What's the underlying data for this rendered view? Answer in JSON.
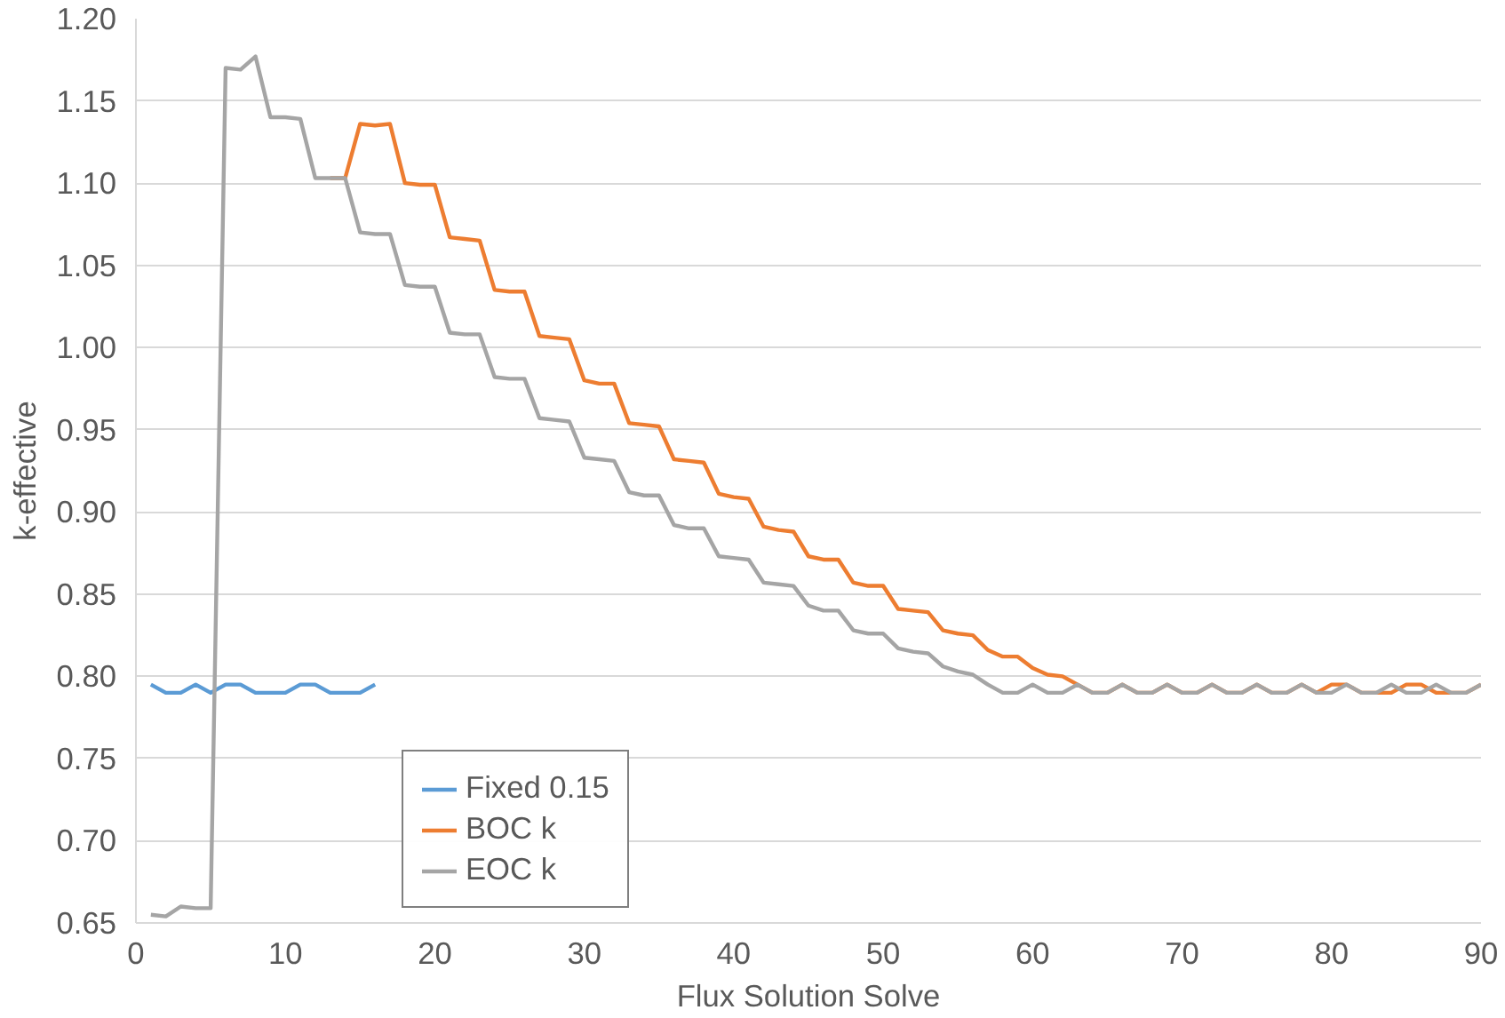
{
  "chart_data": {
    "type": "line",
    "xlabel": "Flux Solution Solve",
    "ylabel": "k-effective",
    "xlim": [
      0,
      90
    ],
    "xticks": [
      0,
      10,
      20,
      30,
      40,
      50,
      60,
      70,
      80,
      90
    ],
    "ylim": [
      0.65,
      1.2
    ],
    "yticks": [
      {
        "value": 0.65,
        "label": "0.65"
      },
      {
        "value": 0.7,
        "label": "0.70"
      },
      {
        "value": 0.75,
        "label": "0.75"
      },
      {
        "value": 0.8,
        "label": "0.80"
      },
      {
        "value": 0.85,
        "label": "0.85"
      },
      {
        "value": 0.9,
        "label": "0.90"
      },
      {
        "value": 0.95,
        "label": "0.95"
      },
      {
        "value": 1.0,
        "label": "1.00"
      },
      {
        "value": 1.05,
        "label": "1.05"
      },
      {
        "value": 1.1,
        "label": "1.10"
      },
      {
        "value": 1.15,
        "label": "1.15"
      },
      {
        "value": 1.2,
        "label": "1.20"
      }
    ],
    "grid": "y",
    "legend": "bottom left",
    "line_style": "solid",
    "series": [
      {
        "name": "Fixed 0.15",
        "color": "#5b9bd5",
        "x": [
          1,
          2,
          3,
          4,
          5,
          6,
          7,
          8,
          9,
          10,
          11,
          12,
          13,
          14,
          15,
          16
        ],
        "values": [
          0.795,
          0.79,
          0.79,
          0.795,
          0.79,
          0.795,
          0.795,
          0.79,
          0.79,
          0.79,
          0.795,
          0.795,
          0.79,
          0.79,
          0.79,
          0.795
        ]
      },
      {
        "name": "BOC k",
        "color": "#ed7d31",
        "x": [
          13,
          14,
          15,
          16,
          17,
          18,
          19,
          20,
          21,
          22,
          23,
          24,
          25,
          26,
          27,
          28,
          29,
          30,
          31,
          32,
          33,
          34,
          35,
          36,
          37,
          38,
          39,
          40,
          41,
          42,
          43,
          44,
          45,
          46,
          47,
          48,
          49,
          50,
          51,
          52,
          53,
          54,
          55,
          56,
          57,
          58,
          59,
          60,
          61,
          62,
          63,
          64,
          65,
          66,
          67,
          68,
          69,
          70,
          71,
          72,
          73,
          74,
          75,
          76,
          77,
          78,
          79,
          80,
          81,
          82,
          83,
          84,
          85,
          86,
          87,
          88,
          89,
          90
        ],
        "values": [
          1.103,
          1.103,
          1.136,
          1.135,
          1.136,
          1.1,
          1.099,
          1.099,
          1.067,
          1.066,
          1.065,
          1.035,
          1.034,
          1.034,
          1.007,
          1.006,
          1.005,
          0.98,
          0.978,
          0.978,
          0.954,
          0.953,
          0.952,
          0.932,
          0.931,
          0.93,
          0.911,
          0.909,
          0.908,
          0.891,
          0.889,
          0.888,
          0.873,
          0.871,
          0.871,
          0.857,
          0.855,
          0.855,
          0.841,
          0.84,
          0.839,
          0.828,
          0.826,
          0.825,
          0.816,
          0.812,
          0.812,
          0.805,
          0.801,
          0.8,
          0.795,
          0.79,
          0.79,
          0.795,
          0.79,
          0.79,
          0.795,
          0.79,
          0.79,
          0.795,
          0.79,
          0.79,
          0.795,
          0.79,
          0.79,
          0.795,
          0.79,
          0.795,
          0.795,
          0.79,
          0.79,
          0.79,
          0.795,
          0.795,
          0.79,
          0.79,
          0.79,
          0.795
        ]
      },
      {
        "name": "EOC k",
        "color": "#a5a5a5",
        "x": [
          1,
          2,
          3,
          4,
          5,
          6,
          7,
          8,
          9,
          10,
          11,
          12,
          13,
          14,
          15,
          16,
          17,
          18,
          19,
          20,
          21,
          22,
          23,
          24,
          25,
          26,
          27,
          28,
          29,
          30,
          31,
          32,
          33,
          34,
          35,
          36,
          37,
          38,
          39,
          40,
          41,
          42,
          43,
          44,
          45,
          46,
          47,
          48,
          49,
          50,
          51,
          52,
          53,
          54,
          55,
          56,
          57,
          58,
          59,
          60,
          61,
          62,
          63,
          64,
          65,
          66,
          67,
          68,
          69,
          70,
          71,
          72,
          73,
          74,
          75,
          76,
          77,
          78,
          79,
          80,
          81,
          82,
          83,
          84,
          85,
          86,
          87,
          88,
          89,
          90
        ],
        "values": [
          0.655,
          0.654,
          0.66,
          0.659,
          0.659,
          1.17,
          1.169,
          1.177,
          1.14,
          1.14,
          1.139,
          1.103,
          1.103,
          1.103,
          1.07,
          1.069,
          1.069,
          1.038,
          1.037,
          1.037,
          1.009,
          1.008,
          1.008,
          0.982,
          0.981,
          0.981,
          0.957,
          0.956,
          0.955,
          0.933,
          0.932,
          0.931,
          0.912,
          0.91,
          0.91,
          0.892,
          0.89,
          0.89,
          0.873,
          0.872,
          0.871,
          0.857,
          0.856,
          0.855,
          0.843,
          0.84,
          0.84,
          0.828,
          0.826,
          0.826,
          0.817,
          0.815,
          0.814,
          0.806,
          0.803,
          0.801,
          0.795,
          0.79,
          0.79,
          0.795,
          0.79,
          0.79,
          0.795,
          0.79,
          0.79,
          0.795,
          0.79,
          0.79,
          0.795,
          0.79,
          0.79,
          0.795,
          0.79,
          0.79,
          0.795,
          0.79,
          0.79,
          0.795,
          0.79,
          0.79,
          0.795,
          0.79,
          0.79,
          0.795,
          0.79,
          0.79,
          0.795,
          0.79,
          0.79,
          0.795
        ]
      }
    ]
  }
}
